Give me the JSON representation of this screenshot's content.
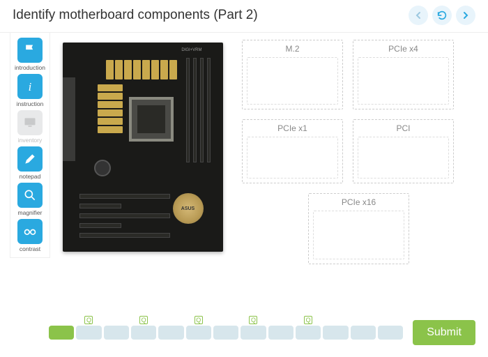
{
  "header": {
    "title": "Identify motherboard components (Part 2)"
  },
  "sidebar": [
    {
      "id": "introduction",
      "label": "introduction",
      "active": true,
      "icon": "flag"
    },
    {
      "id": "instruction",
      "label": "instruction",
      "active": true,
      "icon": "info"
    },
    {
      "id": "inventory",
      "label": "inventory",
      "active": false,
      "icon": "monitor"
    },
    {
      "id": "notepad",
      "label": "notepad",
      "active": true,
      "icon": "pencil"
    },
    {
      "id": "magnifier",
      "label": "magnifier",
      "active": true,
      "icon": "magnifier"
    },
    {
      "id": "contrast",
      "label": "contrast",
      "active": true,
      "icon": "glasses"
    }
  ],
  "motherboard": {
    "brand_label": "ASUS",
    "top_label": "DIGI+VRM"
  },
  "drop_targets": {
    "rows": [
      [
        {
          "label": "M.2"
        },
        {
          "label": "PCIe x4"
        }
      ],
      [
        {
          "label": "PCIe x1"
        },
        {
          "label": "PCI"
        }
      ],
      [
        {
          "label": "PCIe x16"
        }
      ]
    ]
  },
  "progress": {
    "total": 13,
    "completed": 1,
    "question_markers": [
      2,
      4,
      6,
      8,
      10
    ]
  },
  "submit_label": "Submit",
  "colors": {
    "accent_blue": "#2aa9e0",
    "accent_green": "#8bc34a",
    "drop_border": "#cccccc"
  }
}
